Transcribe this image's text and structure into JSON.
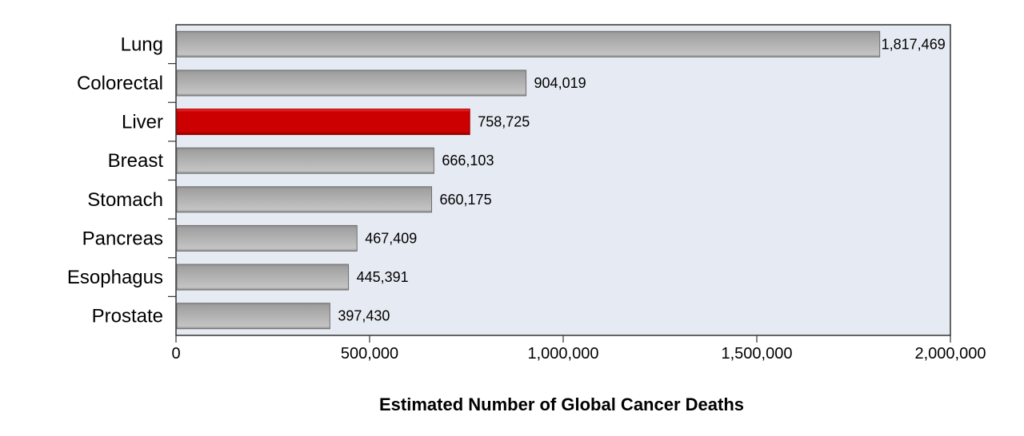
{
  "chart_data": {
    "type": "bar",
    "orientation": "horizontal",
    "title": "",
    "xlabel": "Estimated Number of Global Cancer Deaths",
    "ylabel": "",
    "categories": [
      "Lung",
      "Colorectal",
      "Liver",
      "Breast",
      "Stomach",
      "Pancreas",
      "Esophagus",
      "Prostate"
    ],
    "values": [
      1817469,
      904019,
      758725,
      666103,
      660175,
      467409,
      445391,
      397430
    ],
    "value_labels": [
      "1,817,469",
      "904,019",
      "758,725",
      "666,103",
      "660,175",
      "467,409",
      "445,391",
      "397,430"
    ],
    "highlight": "Liver",
    "xlim": [
      0,
      2000000
    ],
    "xticks": [
      0,
      500000,
      1000000,
      1500000,
      2000000
    ],
    "xtick_labels": [
      "0",
      "500,000",
      "1,000,000",
      "1,500,000",
      "2,000,000"
    ],
    "grid": false,
    "colors": {
      "bar": "#b4b4b4",
      "highlight": "#cc0000",
      "plot_bg": "#e6eaf2"
    }
  }
}
